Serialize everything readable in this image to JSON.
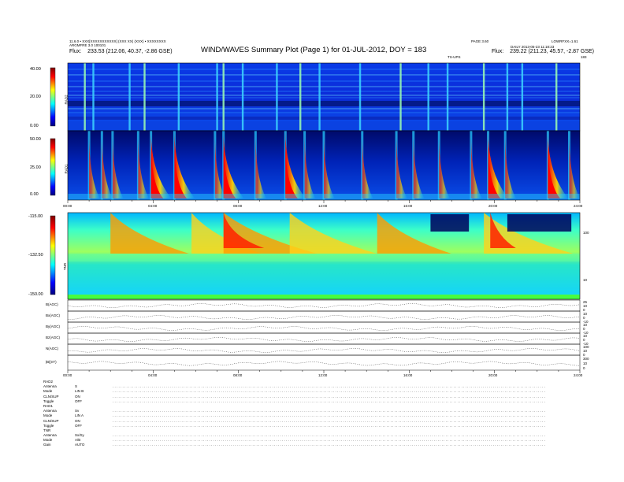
{
  "header": {
    "left_line1": "11.6.0 • XXX[XXXXXXXXXXX] (XXX XX) (XXX) • XXXXXXXX",
    "left_line2": "ARGMFRE 3.0 100101",
    "left_flux_label": "Flux:",
    "left_flux": "233.53 (212.06, 40.37, -2.86 GSE)",
    "title": "WIND/WAVES Summary Plot (Page 1) for 01-JUL-2012, DOY = 183",
    "right_line1": "PAGE 3.60",
    "right_line2": "DAILY 2013-05-23 11:18:23",
    "right_line2b": "LOWRFXX=1.61",
    "right_flux_label": "Flux:",
    "right_flux": "239.22 (211.23, 45.57, -2.87 GSE)",
    "thrshr_label": "TS-UPS",
    "doy_right": "183"
  },
  "panels": {
    "rad2": {
      "label": "RAD2",
      "ticks": [
        "40.00",
        "20.00",
        "0.00"
      ]
    },
    "rad1": {
      "label": "RAD1",
      "ticks": [
        "50.00",
        "25.00",
        "0.00"
      ]
    },
    "tnr": {
      "label": "TNR",
      "ticks": [
        "-115.00",
        "-132.50",
        "-150.00"
      ],
      "right_ticks": [
        "100",
        "10"
      ]
    },
    "time_ticks": [
      "00:00",
      "04:00",
      "08:00",
      "12:00",
      "16:00",
      "20:00",
      "24:00"
    ],
    "tnr_corner": "DPHS1",
    "mag_rows": [
      {
        "label": "B(AGC)",
        "right": [
          "25",
          "10",
          "0"
        ]
      },
      {
        "label": "Bx(AGC)",
        "right": [
          "10",
          "0",
          "-10"
        ]
      },
      {
        "label": "By(AGC)",
        "right": [
          "10",
          "0",
          "-10"
        ]
      },
      {
        "label": "Bz(AGC)",
        "right": [
          "10",
          "0",
          "-10"
        ]
      },
      {
        "label": "N(AGC)",
        "right": [
          "100",
          "10",
          "0"
        ]
      },
      {
        "label": "|B|(nT)",
        "right": [
          "300",
          "10",
          "0"
        ]
      }
    ]
  },
  "footer": {
    "rad2_title": "RAD2",
    "rad2_rows": [
      {
        "label": "Antenna",
        "value": "S"
      },
      {
        "label": "Mode",
        "value": "LIN B"
      },
      {
        "label": "CLN/SUP",
        "value": "ON"
      },
      {
        "label": "Toggle",
        "value": "OFF"
      }
    ],
    "rad1_title": "RAD1",
    "rad1_rows": [
      {
        "label": "Antenna",
        "value": "Sv"
      },
      {
        "label": "Mode",
        "value": "LIN A"
      },
      {
        "label": "CLN/SUP",
        "value": "ON"
      },
      {
        "label": "Toggle",
        "value": "OFF"
      }
    ],
    "tnr_title": "TNR",
    "tnr_rows": [
      {
        "label": "Antenna",
        "value": "Sx/Sy"
      },
      {
        "label": "Mode",
        "value": "A/B"
      },
      {
        "label": "Gain",
        "value": "AUTO"
      }
    ]
  },
  "chart_data": [
    {
      "type": "heatmap",
      "title": "WIND/WAVES Summary Plot (Page 1) for 01-JUL-2012, DOY = 183",
      "panel": "RAD2",
      "xlabel": "",
      "ylabel": "RAD2",
      "x_range_hours": [
        0,
        24
      ],
      "colorbar_range": [
        0.0,
        40.0
      ],
      "colorbar_ticks": [
        0.0,
        20.0,
        40.0
      ],
      "colormap": [
        "#00007f",
        "#0000ff",
        "#00ffff",
        "#ffff00",
        "#ff0000",
        "#7f0000"
      ],
      "vertical_bursts_hours": [
        0.8,
        1.2,
        2.9,
        3.6,
        5.2,
        7.0,
        7.3,
        8.2,
        9.8,
        10.9,
        11.8,
        13.7,
        15.6,
        16.9,
        17.8,
        19.5,
        20.6,
        21.3,
        22.9
      ]
    },
    {
      "type": "heatmap",
      "panel": "RAD1",
      "xlabel": "",
      "ylabel": "RAD1",
      "x_range_hours": [
        0,
        24
      ],
      "colorbar_range": [
        0.0,
        50.0
      ],
      "colorbar_ticks": [
        0.0,
        25.0,
        50.0
      ],
      "type_iii_bursts_hours": [
        1.0,
        1.6,
        2.1,
        3.3,
        3.9,
        5.0,
        6.9,
        7.3,
        8.8,
        10.2,
        11.1,
        12.0,
        13.8,
        15.4,
        16.2,
        17.4,
        18.9,
        19.7,
        20.5,
        22.5,
        23.5
      ],
      "strong_bursts_hours": [
        3.9,
        5.0,
        7.3,
        10.2,
        19.7,
        22.5
      ]
    },
    {
      "type": "heatmap",
      "panel": "TNR",
      "xlabel": "",
      "ylabel": "TNR",
      "x_range_hours": [
        0,
        24
      ],
      "x_ticks": [
        "00:00",
        "04:00",
        "08:00",
        "12:00",
        "16:00",
        "20:00",
        "24:00"
      ],
      "colorbar_range": [
        -150.0,
        -115.0
      ],
      "colorbar_ticks": [
        -150.0,
        -132.5,
        -115.0
      ],
      "right_axis_ticks": [
        10,
        100
      ]
    },
    {
      "type": "line",
      "panel": "Magnetic field / AGC traces",
      "x_range_hours": [
        0,
        24
      ],
      "series": [
        {
          "name": "B(AGC)"
        },
        {
          "name": "Bx(AGC)"
        },
        {
          "name": "By(AGC)"
        },
        {
          "name": "Bz(AGC)"
        },
        {
          "name": "N(AGC)"
        },
        {
          "name": "|B|(nT)"
        }
      ]
    }
  ]
}
